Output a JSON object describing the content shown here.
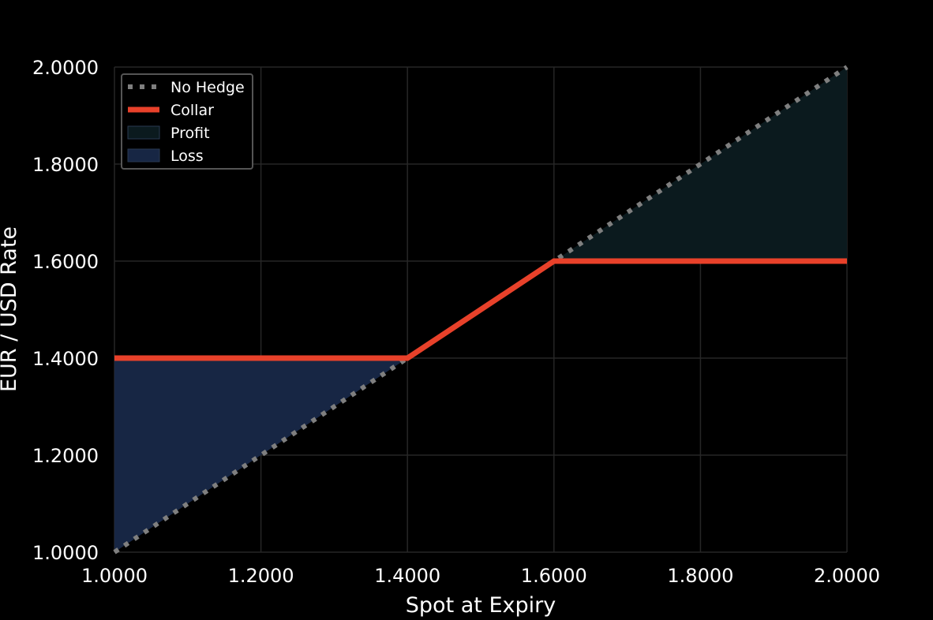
{
  "chart_data": {
    "type": "line",
    "title": "",
    "xlabel": "Spot at Expiry",
    "ylabel": "EUR / USD Rate",
    "xlim": [
      1.0,
      2.0
    ],
    "ylim": [
      1.0,
      2.0
    ],
    "xticks": [
      "1.0000",
      "1.2000",
      "1.4000",
      "1.6000",
      "1.8000",
      "2.0000"
    ],
    "yticks": [
      "1.0000",
      "1.2000",
      "1.4000",
      "1.6000",
      "1.8000",
      "2.0000"
    ],
    "grid": true,
    "legend_position": "top-left",
    "series": [
      {
        "name": "No Hedge",
        "style": "dotted",
        "color": "#7f7f7f",
        "x": [
          1.0,
          2.0
        ],
        "y": [
          1.0,
          2.0
        ]
      },
      {
        "name": "Collar",
        "style": "solid",
        "color": "#e8412a",
        "x": [
          1.0,
          1.4,
          1.6,
          2.0
        ],
        "y": [
          1.4,
          1.4,
          1.6,
          1.6
        ]
      }
    ],
    "regions": [
      {
        "name": "Profit",
        "color": "#0b1a1e",
        "x": [
          1.6,
          2.0
        ],
        "lower": [
          1.6,
          1.6
        ],
        "upper": [
          1.6,
          2.0
        ]
      },
      {
        "name": "Loss",
        "color": "#172644",
        "x": [
          1.0,
          1.4
        ],
        "lower": [
          1.0,
          1.4
        ],
        "upper": [
          1.4,
          1.4
        ]
      }
    ]
  }
}
